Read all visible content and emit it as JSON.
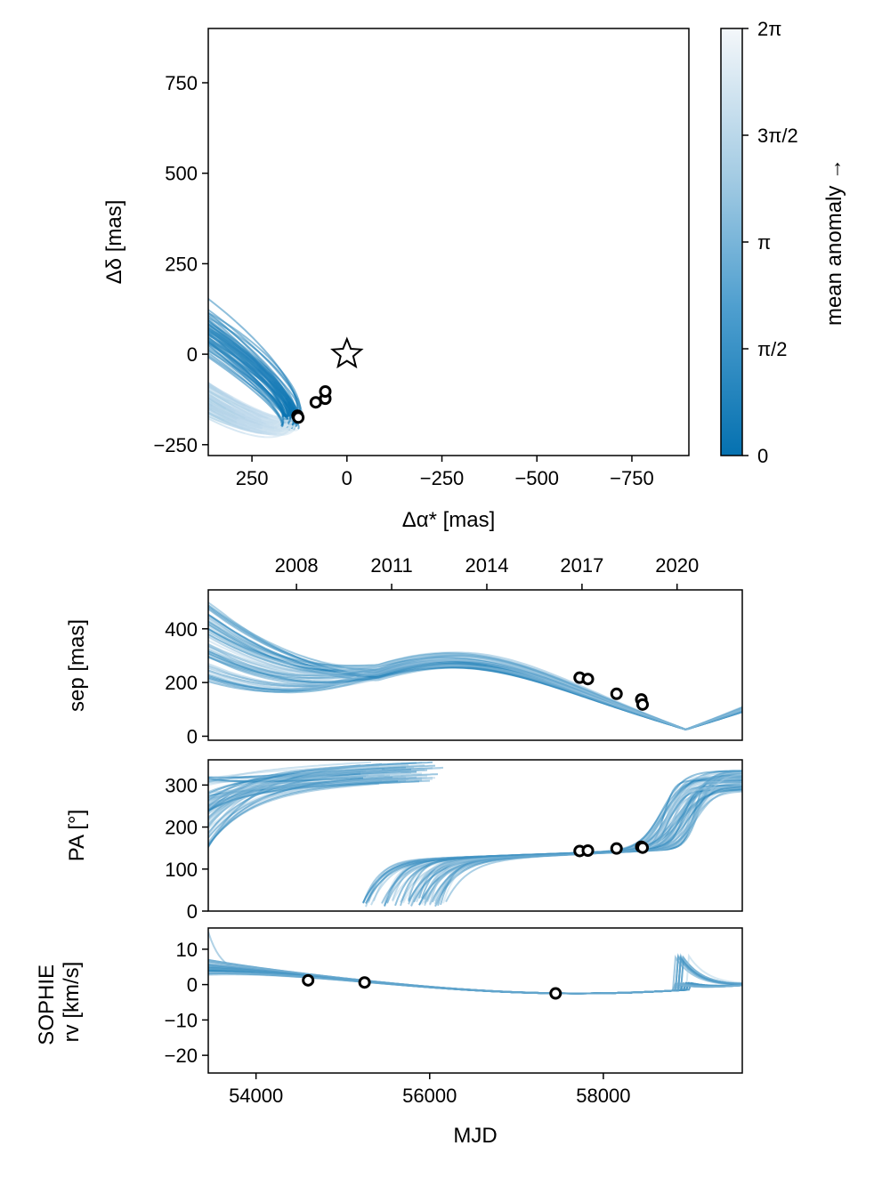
{
  "colors": {
    "line": "#1a7fc0",
    "cmap_low": "#0571b0",
    "cmap_high": "#f4f7fa",
    "marker_fill": "#ffffff",
    "marker_edge": "#000000"
  },
  "chart_data": [
    {
      "id": "astrometry",
      "type": "line",
      "title": "",
      "xlabel": "Δα* [mas]",
      "ylabel": "Δδ [mas]",
      "xlim": [
        365,
        -900
      ],
      "ylim": [
        -280,
        900
      ],
      "xticks": [
        250,
        0,
        -250,
        -500,
        -750
      ],
      "xtick_labels": [
        "250",
        "0",
        "−250",
        "−500",
        "−750"
      ],
      "yticks": [
        750,
        500,
        250,
        0,
        -250
      ],
      "ytick_labels": [
        "750",
        "500",
        "250",
        "0",
        "−250"
      ],
      "star": {
        "x": 0,
        "y": 0
      },
      "observations": [
        {
          "x": 130,
          "y": -170
        },
        {
          "x": 128,
          "y": -175
        },
        {
          "x": 82,
          "y": -133
        },
        {
          "x": 57,
          "y": -123
        },
        {
          "x": 57,
          "y": -103
        }
      ],
      "orbit_samples": 60,
      "orbit_ranges": {
        "sep_max": [
          450,
          1050
        ],
        "sep_min": [
          0,
          20
        ],
        "pa_deg": [
          140,
          148
        ],
        "width": [
          40,
          110
        ]
      }
    },
    {
      "id": "colorbar",
      "type": "heatmap",
      "label": "mean anomaly →",
      "range": [
        0,
        6.2832
      ],
      "ticks": [
        0,
        1.5708,
        3.1416,
        4.7124,
        6.2832
      ],
      "tick_labels": [
        "0",
        "π/2",
        "π",
        "3π/2",
        "2π"
      ]
    },
    {
      "id": "separation",
      "type": "line",
      "ylabel": "sep [mas]",
      "xlim": [
        53450,
        59600
      ],
      "ylim": [
        -15,
        545
      ],
      "yticks": [
        0,
        200,
        400
      ],
      "ytick_labels": [
        "0",
        "200",
        "400"
      ],
      "top_axis_years": [
        "2008",
        "2011",
        "2014",
        "2017",
        "2020"
      ],
      "top_axis_mjd": [
        54466,
        55562,
        56658,
        57754,
        58849
      ],
      "observations": [
        {
          "x": 57727,
          "y": 218
        },
        {
          "x": 57822,
          "y": 213
        },
        {
          "x": 58152,
          "y": 158
        },
        {
          "x": 58437,
          "y": 137
        },
        {
          "x": 58452,
          "y": 118
        }
      ],
      "period_range_days": [
        5200,
        5600
      ],
      "amplitude_range": [
        200,
        250
      ],
      "samples": 60
    },
    {
      "id": "position_angle",
      "type": "line",
      "ylabel": "PA [°]",
      "xlim": [
        53450,
        59600
      ],
      "ylim": [
        0,
        360
      ],
      "yticks": [
        0,
        100,
        200,
        300
      ],
      "ytick_labels": [
        "0",
        "100",
        "200",
        "300"
      ],
      "observations": [
        {
          "x": 57727,
          "y": 143
        },
        {
          "x": 57822,
          "y": 144
        },
        {
          "x": 58152,
          "y": 149
        },
        {
          "x": 58437,
          "y": 153
        },
        {
          "x": 58452,
          "y": 151
        }
      ],
      "samples": 60
    },
    {
      "id": "rv",
      "type": "line",
      "ylabel": "SOPHIE\nrv [km/s]",
      "xlabel": "MJD",
      "xlim": [
        53450,
        59600
      ],
      "ylim": [
        -25,
        16
      ],
      "xticks": [
        54000,
        56000,
        58000
      ],
      "xtick_labels": [
        "54000",
        "56000",
        "58000"
      ],
      "yticks": [
        10,
        0,
        -10,
        -20
      ],
      "ytick_labels": [
        "10",
        "0",
        "−10",
        "−20"
      ],
      "observations": [
        {
          "x": 54600,
          "y": 1.2
        },
        {
          "x": 55250,
          "y": 0.6
        },
        {
          "x": 57450,
          "y": -2.5
        }
      ],
      "samples": 45
    }
  ]
}
